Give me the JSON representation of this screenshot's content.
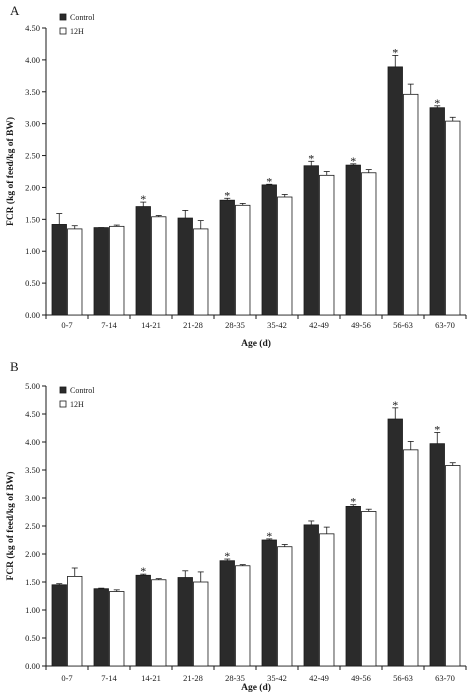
{
  "colors": {
    "control": "#2b2b2b",
    "treatment": "#ffffff",
    "axis": "#1a1a1a"
  },
  "chart_data": [
    {
      "type": "bar",
      "panel_label": "A",
      "categories": [
        "0-7",
        "7-14",
        "14-21",
        "21-28",
        "28-35",
        "35-42",
        "42-49",
        "49-56",
        "56-63",
        "63-70"
      ],
      "series": [
        {
          "name": "Control",
          "values": [
            1.42,
            1.37,
            1.7,
            1.52,
            1.8,
            2.04,
            2.34,
            2.35,
            3.89,
            3.25
          ],
          "errors": [
            0.17,
            0.0,
            0.07,
            0.12,
            0.03,
            0.01,
            0.07,
            0.02,
            0.18,
            0.03
          ]
        },
        {
          "name": "12H",
          "values": [
            1.35,
            1.39,
            1.54,
            1.35,
            1.72,
            1.85,
            2.19,
            2.23,
            3.46,
            3.04
          ],
          "errors": [
            0.05,
            0.02,
            0.02,
            0.13,
            0.03,
            0.04,
            0.06,
            0.05,
            0.16,
            0.06
          ]
        }
      ],
      "significant": [
        false,
        false,
        true,
        false,
        true,
        true,
        true,
        true,
        true,
        true
      ],
      "significance_marker": "*",
      "xlabel": "Age (d)",
      "ylabel": "FCR (kg of feed/kg of BW)",
      "ylim": [
        0,
        4.5
      ],
      "yticks": [
        "0.00",
        "0.50",
        "1.00",
        "1.50",
        "2.00",
        "2.50",
        "3.00",
        "3.50",
        "4.00",
        "4.50"
      ],
      "legend_position": "top-left",
      "grid": false
    },
    {
      "type": "bar",
      "panel_label": "B",
      "categories": [
        "0-7",
        "7-14",
        "14-21",
        "21-28",
        "28-35",
        "35-42",
        "42-49",
        "49-56",
        "56-63",
        "63-70"
      ],
      "series": [
        {
          "name": "Control",
          "values": [
            1.45,
            1.38,
            1.62,
            1.58,
            1.88,
            2.25,
            2.52,
            2.85,
            4.41,
            3.97
          ],
          "errors": [
            0.02,
            0.01,
            0.02,
            0.12,
            0.03,
            0.02,
            0.07,
            0.03,
            0.2,
            0.2
          ]
        },
        {
          "name": "12H",
          "values": [
            1.6,
            1.33,
            1.54,
            1.5,
            1.79,
            2.13,
            2.36,
            2.76,
            3.86,
            3.58
          ],
          "errors": [
            0.15,
            0.03,
            0.02,
            0.18,
            0.02,
            0.04,
            0.12,
            0.04,
            0.15,
            0.05
          ]
        }
      ],
      "significant": [
        false,
        false,
        true,
        false,
        true,
        true,
        false,
        true,
        true,
        true
      ],
      "significance_marker": "*",
      "xlabel": "Age (d)",
      "ylabel": "FCR (kg of feed/kg of BW)",
      "ylim": [
        0,
        5.0
      ],
      "yticks": [
        "0.00",
        "0.50",
        "1.00",
        "1.50",
        "2.00",
        "2.50",
        "3.00",
        "3.50",
        "4.00",
        "4.50",
        "5.00"
      ],
      "legend_position": "top-left",
      "grid": false
    }
  ]
}
